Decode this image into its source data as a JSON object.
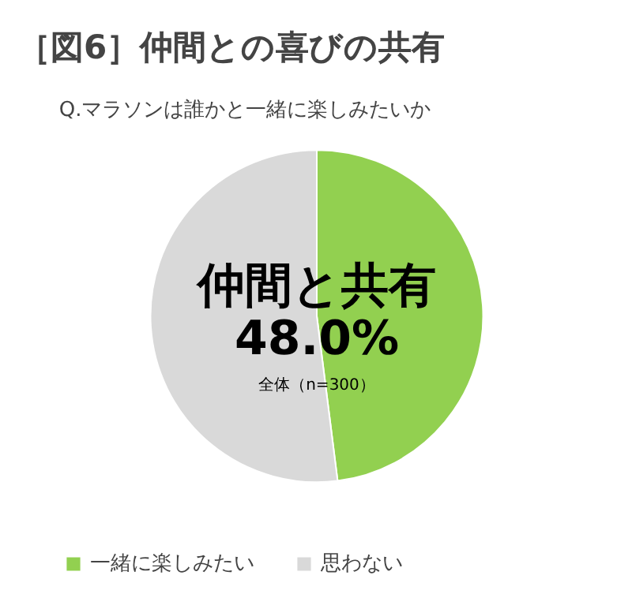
{
  "chart_data": {
    "type": "pie",
    "title": "［図6］仲間との喜びの共有",
    "subtitle": "Q.マラソンは誰かと一緒に楽しみたいか",
    "categories": [
      "一緒に楽しみたい",
      "思わない"
    ],
    "values": [
      48.0,
      52.0
    ],
    "colors": [
      "#92d050",
      "#d9d9d9"
    ],
    "annotations": [
      "仲間と共有",
      "48.0%",
      "全体（n=300）"
    ],
    "legend": "bottom"
  }
}
